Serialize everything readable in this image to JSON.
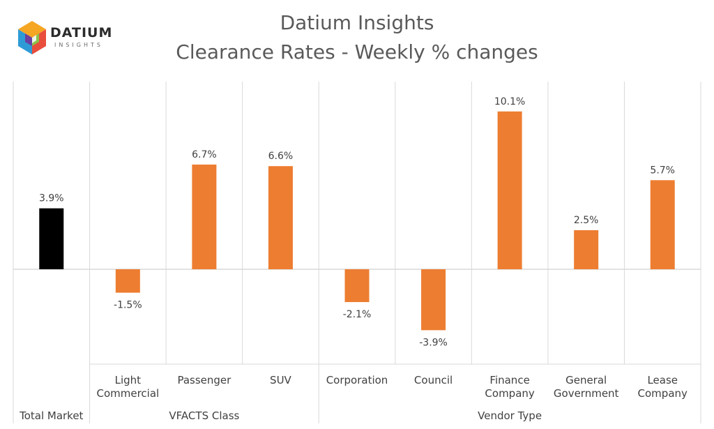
{
  "logo": {
    "name": "DATIUM",
    "tagline": "INSIGHTS"
  },
  "chart_data": {
    "type": "bar",
    "title": "Datium Insights",
    "subtitle": "Clearance Rates - Weekly % changes",
    "groups": [
      {
        "name": "Total Market",
        "categories": [
          "Total Market"
        ]
      },
      {
        "name": "VFACTS Class",
        "categories": [
          "Light Commercial",
          "Passenger",
          "SUV"
        ]
      },
      {
        "name": "Vendor Type",
        "categories": [
          "Corporation",
          "Council",
          "Finance Company",
          "General Government",
          "Lease Company"
        ]
      }
    ],
    "category_labels": [
      "",
      "Light\nCommercial",
      "Passenger",
      "SUV",
      "Corporation",
      "Council",
      "Finance\nCompany",
      "General\nGovernment",
      "Lease\nCompany"
    ],
    "values": [
      3.9,
      -1.5,
      6.7,
      6.6,
      -2.1,
      -3.9,
      10.1,
      2.5,
      5.7
    ],
    "data_labels": [
      "3.9%",
      "-1.5%",
      "6.7%",
      "6.6%",
      "-2.1%",
      "-3.9%",
      "10.1%",
      "2.5%",
      "5.7%"
    ],
    "bar_colors": [
      "#000000",
      "#ED7D31",
      "#ED7D31",
      "#ED7D31",
      "#ED7D31",
      "#ED7D31",
      "#ED7D31",
      "#ED7D31",
      "#ED7D31"
    ],
    "ylim": [
      -6,
      12
    ],
    "grid": false,
    "xlabel": "",
    "ylabel": ""
  }
}
